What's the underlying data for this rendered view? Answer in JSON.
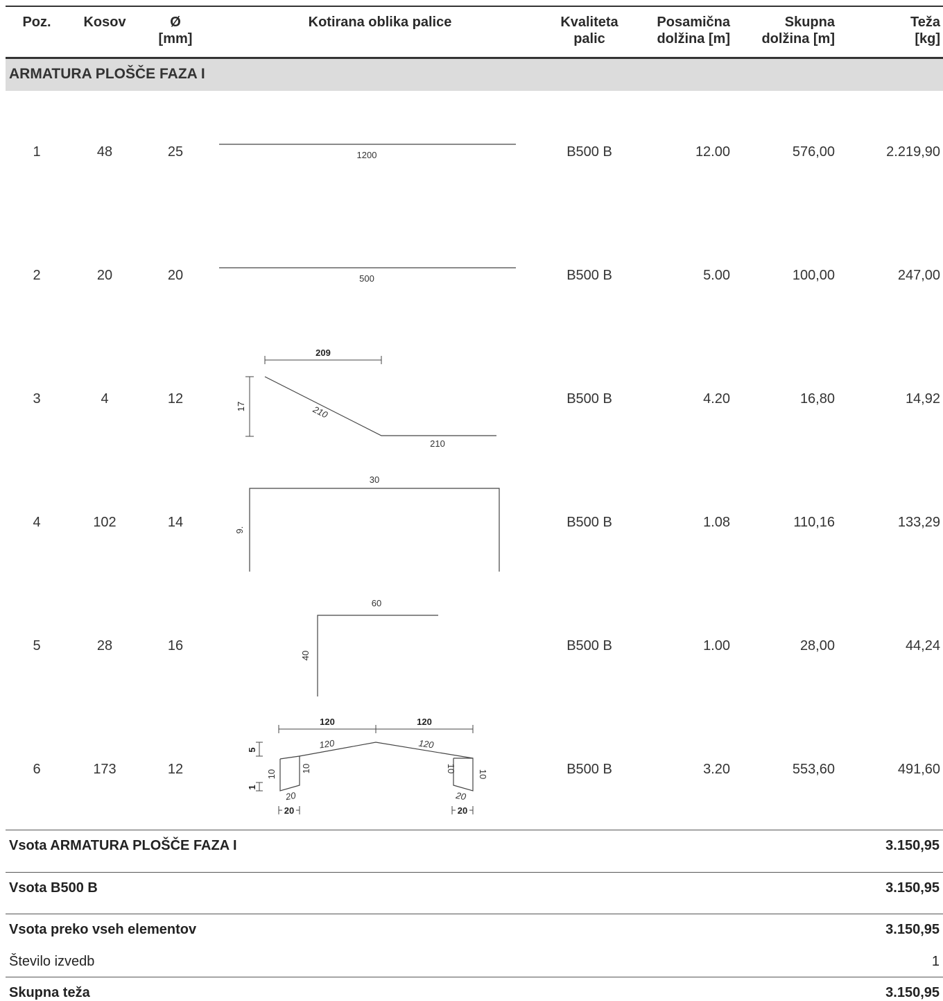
{
  "headers": {
    "poz": "Poz.",
    "kosov": "Kosov",
    "dia_1": "Ø",
    "dia_2": "[mm]",
    "shape": "Kotirana oblika palice",
    "quality_1": "Kvaliteta",
    "quality_2": "palic",
    "single_1": "Posamična",
    "single_2": "dolžina [m]",
    "total_1": "Skupna",
    "total_2": "dolžina [m]",
    "weight_1": "Teža",
    "weight_2": "[kg]"
  },
  "section_title": "ARMATURA PLOŠČE FAZA I",
  "rows": [
    {
      "poz": "1",
      "kosov": "48",
      "dia": "25",
      "quality": "B500 B",
      "single": "12.00",
      "total": "576,00",
      "weight": "2.219,90",
      "dims": {
        "a": "1200"
      }
    },
    {
      "poz": "2",
      "kosov": "20",
      "dia": "20",
      "quality": "B500 B",
      "single": "5.00",
      "total": "100,00",
      "weight": "247,00",
      "dims": {
        "a": "500"
      }
    },
    {
      "poz": "3",
      "kosov": "4",
      "dia": "12",
      "quality": "B500 B",
      "single": "4.20",
      "total": "16,80",
      "weight": "14,92",
      "dims": {
        "top": "209",
        "left": "17",
        "diag": "210",
        "bottom": "210"
      }
    },
    {
      "poz": "4",
      "kosov": "102",
      "dia": "14",
      "quality": "B500 B",
      "single": "1.08",
      "total": "110,16",
      "weight": "133,29",
      "dims": {
        "top": "30",
        "left": "9."
      }
    },
    {
      "poz": "5",
      "kosov": "28",
      "dia": "16",
      "quality": "B500 B",
      "single": "1.00",
      "total": "28,00",
      "weight": "44,24",
      "dims": {
        "top": "60",
        "left": "40"
      }
    },
    {
      "poz": "6",
      "kosov": "173",
      "dia": "12",
      "quality": "B500 B",
      "single": "3.20",
      "total": "553,60",
      "weight": "491,60",
      "dims": {
        "top_l": "120",
        "top_r": "120",
        "slope_l": "120",
        "slope_r": "120",
        "rise": "5",
        "leg_outer_l": "10",
        "leg_inner_l": "10",
        "leg_inner_r": "10",
        "leg_outer_r": "10",
        "tip": "1",
        "foot_l": "20",
        "foot_r": "20",
        "base_l": "20",
        "base_r": "20"
      }
    }
  ],
  "summary": {
    "section_label": "Vsota ARMATURA PLOŠČE FAZA I",
    "section_value": "3.150,95",
    "grade_label": "Vsota B500 B",
    "grade_value": "3.150,95",
    "all_label": "Vsota preko vseh elementov",
    "all_value": "3.150,95",
    "count_label": "Število izvedb",
    "count_value": "1",
    "total_label": "Skupna teža",
    "total_value": "3.150,95"
  }
}
